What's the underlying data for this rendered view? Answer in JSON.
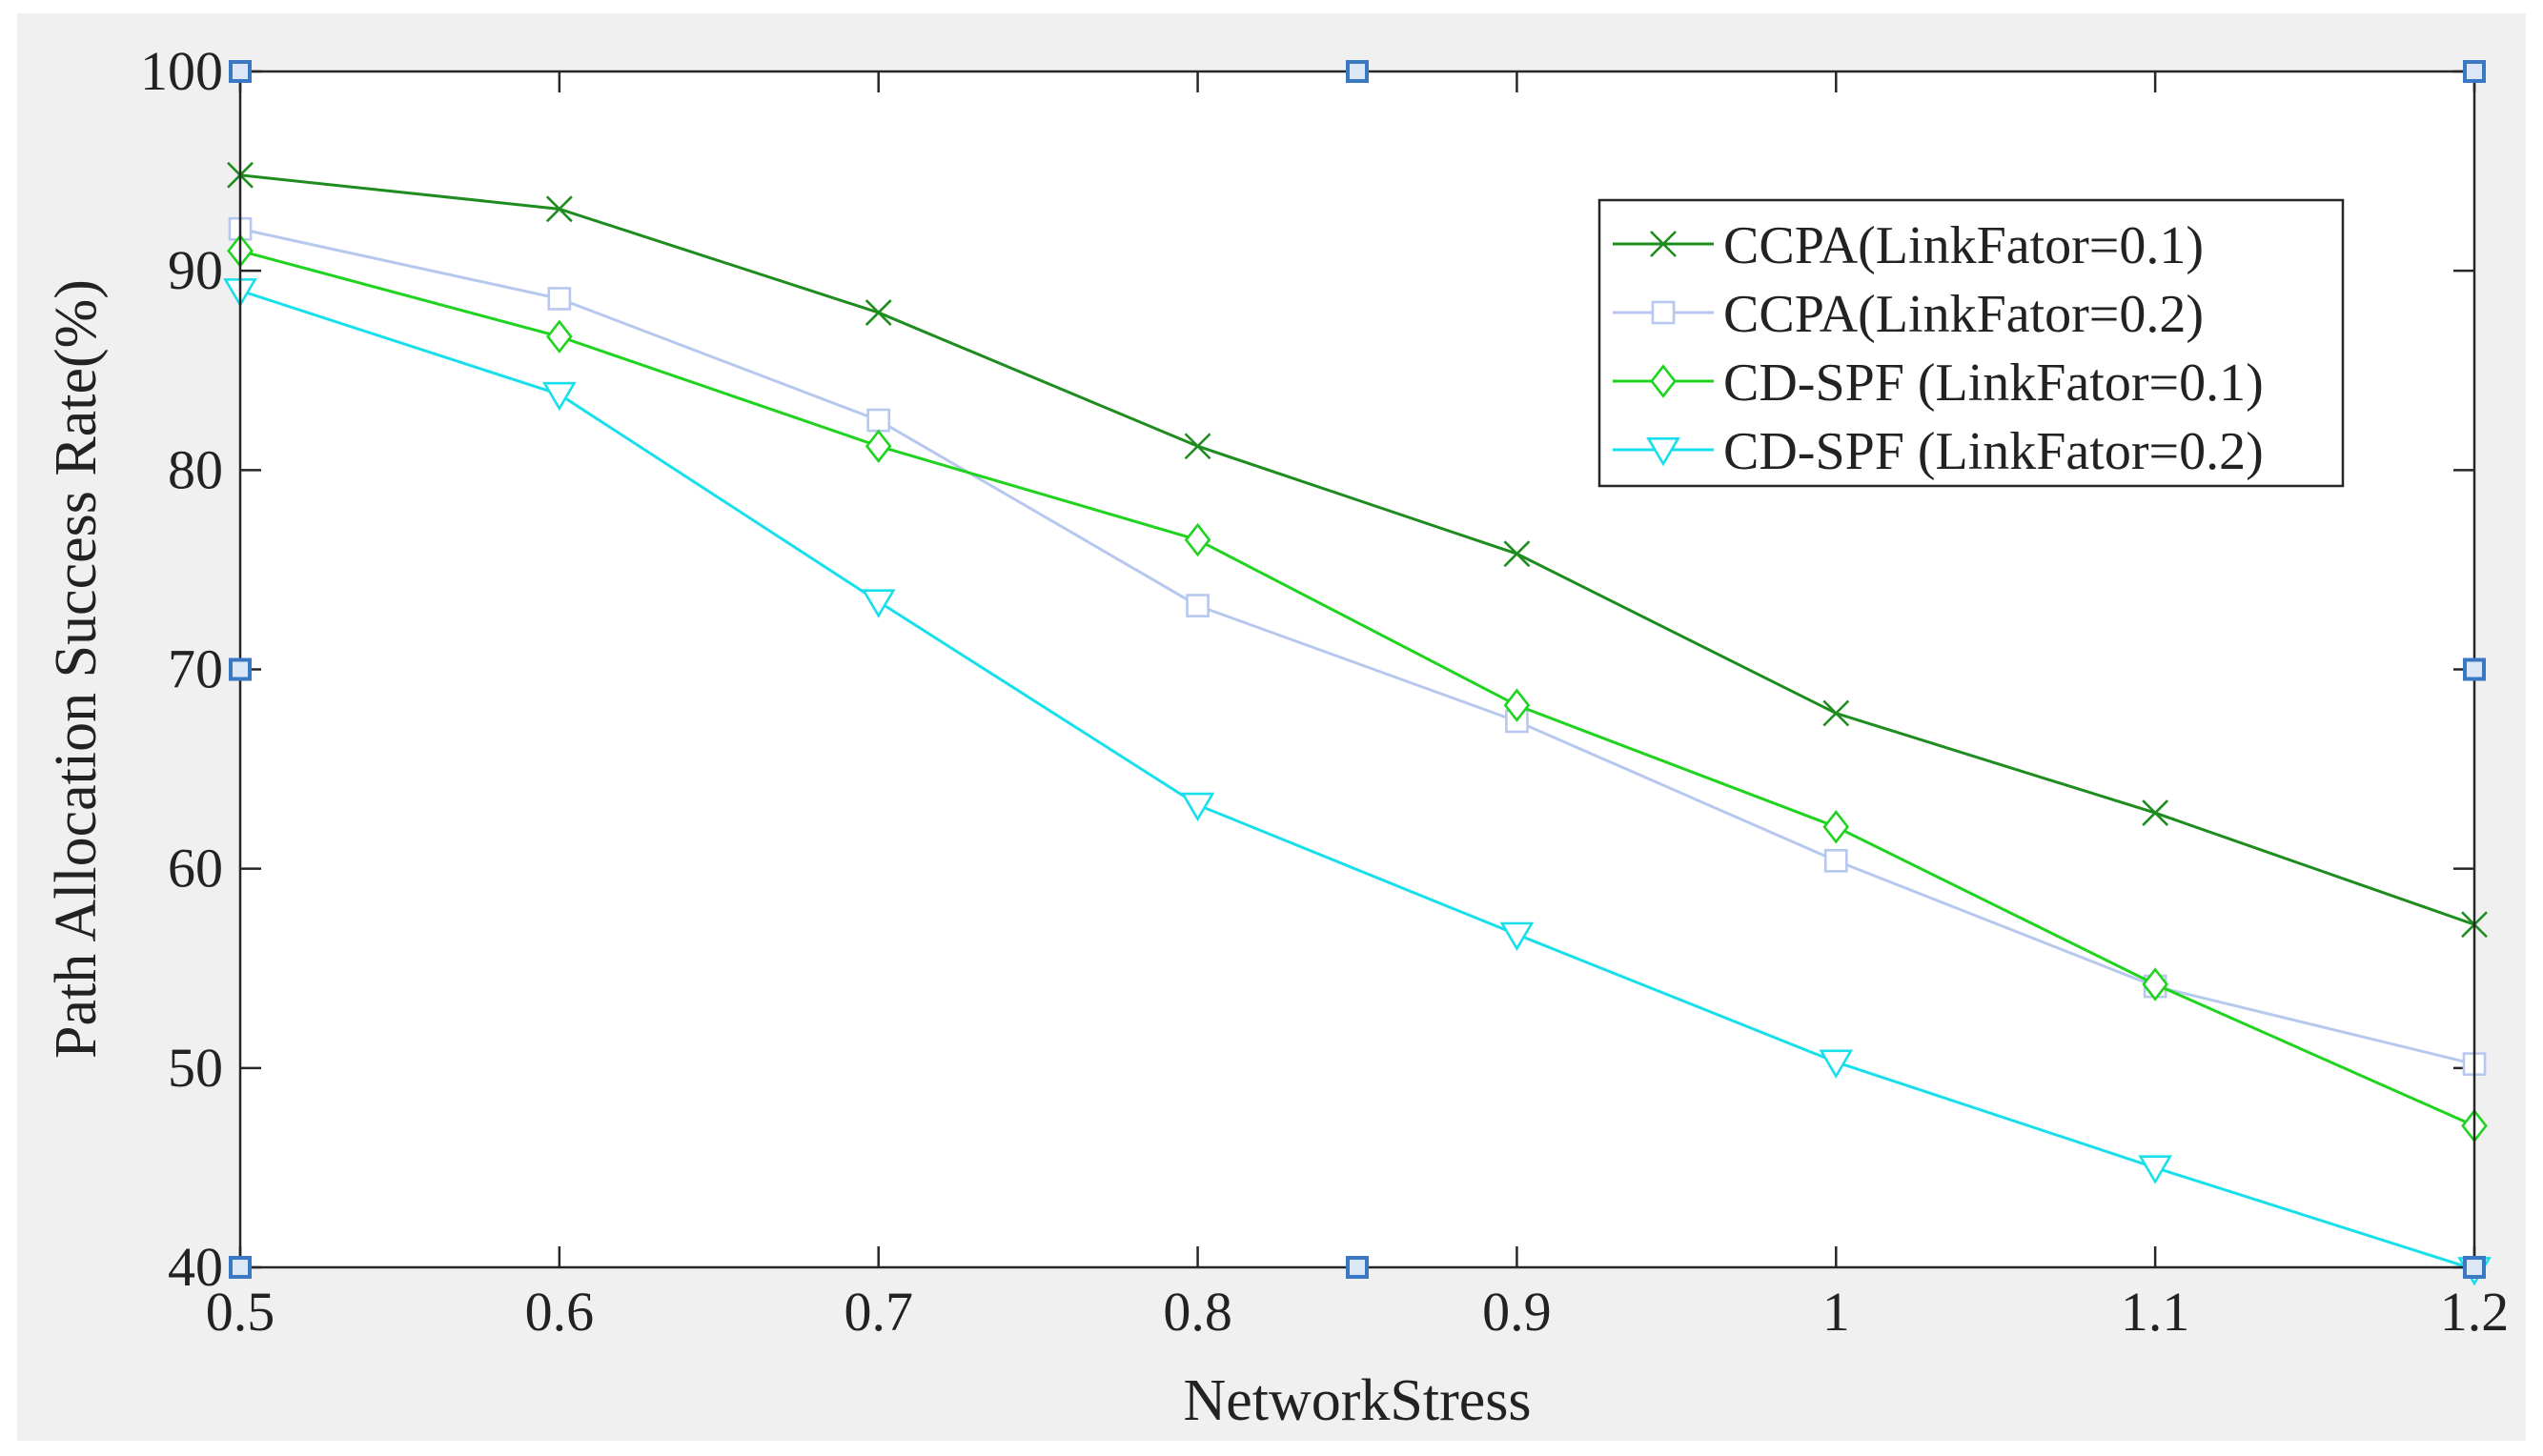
{
  "chart_data": {
    "type": "line",
    "title": "",
    "xlabel": "NetworkStress",
    "ylabel": "Path Allocation Success Rate(%)",
    "xlim": [
      0.5,
      1.2
    ],
    "ylim": [
      40,
      100
    ],
    "xticks": [
      0.5,
      0.6,
      0.7,
      0.8,
      0.9,
      1,
      1.1,
      1.2
    ],
    "xtick_labels": [
      "0.5",
      "0.6",
      "0.7",
      "0.8",
      "0.9",
      "1",
      "1.1",
      "1.2"
    ],
    "yticks": [
      40,
      50,
      60,
      70,
      80,
      90,
      100
    ],
    "ytick_labels": [
      "40",
      "50",
      "60",
      "70",
      "80",
      "90",
      "100"
    ],
    "grid": false,
    "legend_position": "top-right",
    "x": [
      0.5,
      0.6,
      0.7,
      0.8,
      0.9,
      1.0,
      1.1,
      1.2
    ],
    "series": [
      {
        "name": "CCPA(LinkFator=0.1)",
        "color": "#1e8c1e",
        "marker": "x",
        "values": [
          94.8,
          93.1,
          87.9,
          81.2,
          75.8,
          67.8,
          62.8,
          57.2
        ]
      },
      {
        "name": "CCPA(LinkFator=0.2)",
        "color": "#b7c8ef",
        "marker": "square",
        "values": [
          92.1,
          88.6,
          82.5,
          73.2,
          67.4,
          60.4,
          54.1,
          50.2
        ]
      },
      {
        "name": "CD-SPF (LinkFator=0.1)",
        "color": "#1fd31f",
        "marker": "diamond",
        "values": [
          91.0,
          86.7,
          81.2,
          76.5,
          68.2,
          62.1,
          54.2,
          47.1
        ]
      },
      {
        "name": "CD-SPF (LinkFator=0.2)",
        "color": "#19dfea",
        "marker": "triangle-down",
        "values": [
          89.0,
          83.8,
          73.4,
          63.2,
          56.7,
          50.3,
          45.0,
          39.9
        ]
      }
    ],
    "selection_handles": {
      "color": "#3a78c4",
      "points": [
        [
          0.5,
          100
        ],
        [
          0.85,
          100
        ],
        [
          1.2,
          100
        ],
        [
          0.5,
          70
        ],
        [
          1.2,
          70
        ],
        [
          0.5,
          40
        ],
        [
          0.85,
          40
        ],
        [
          1.2,
          40
        ]
      ]
    }
  }
}
